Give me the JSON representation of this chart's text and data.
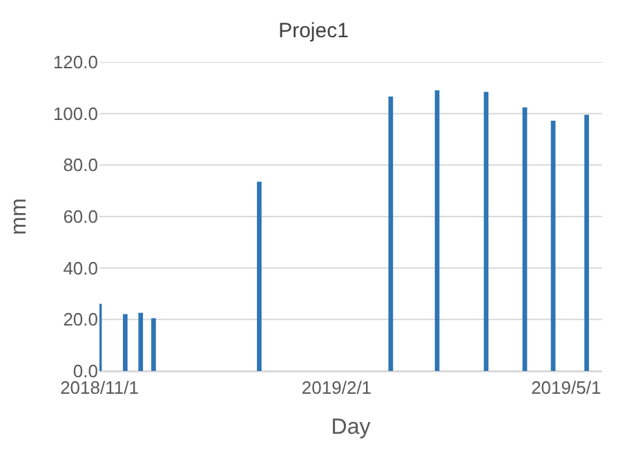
{
  "chart_data": {
    "type": "bar",
    "title": "Projec1",
    "xlabel": "Day",
    "ylabel": "mm",
    "x": [
      "2018-11-01",
      "2018-11-11",
      "2018-11-17",
      "2018-11-22",
      "2019-01-02",
      "2019-02-22",
      "2019-03-12",
      "2019-03-31",
      "2019-04-15",
      "2019-04-26",
      "2019-05-09"
    ],
    "values": [
      26.1,
      22.1,
      22.6,
      20.5,
      73.5,
      106.6,
      109.0,
      108.4,
      102.4,
      97.2,
      99.5
    ],
    "color": "#2e75b6",
    "xlim": [
      "2018-11-01",
      "2019-05-15"
    ],
    "xticks": [
      {
        "value": "2018-11-01",
        "label": "2018/11/1"
      },
      {
        "value": "2019-02-01",
        "label": "2019/2/1"
      },
      {
        "value": "2019-05-01",
        "label": "2019/5/1"
      }
    ],
    "ylim": [
      0,
      120
    ],
    "yticks": [
      {
        "value": 0,
        "label": "0.0"
      },
      {
        "value": 20,
        "label": "20.0"
      },
      {
        "value": 40,
        "label": "40.0"
      },
      {
        "value": 60,
        "label": "60.0"
      },
      {
        "value": 80,
        "label": "80.0"
      },
      {
        "value": 100,
        "label": "100.0"
      },
      {
        "value": 120,
        "label": "120.0"
      }
    ],
    "grid": "y"
  }
}
